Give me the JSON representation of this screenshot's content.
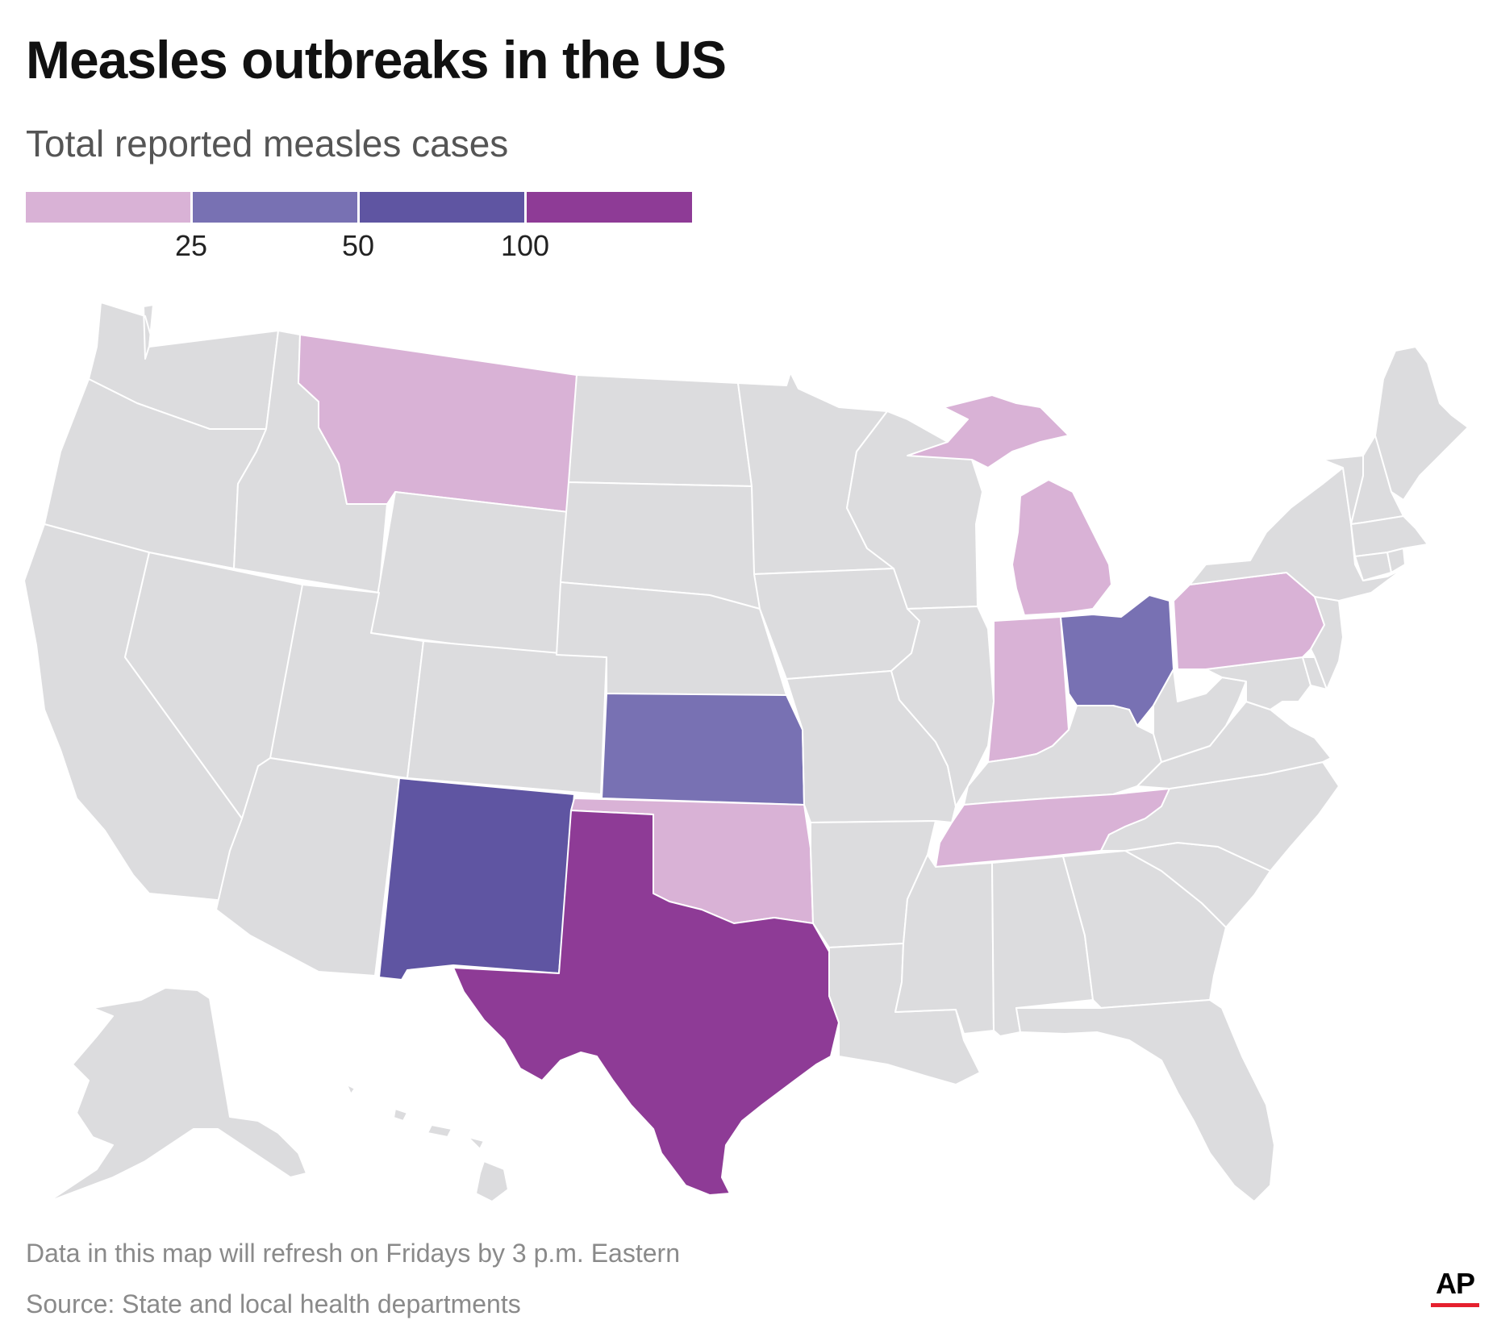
{
  "header": {
    "title": "Measles outbreaks in the US",
    "subtitle": "Total reported measles cases"
  },
  "legend": {
    "bins": [
      {
        "color": "#d9b2d6"
      },
      {
        "color": "#7871b3"
      },
      {
        "color": "#5f55a2"
      },
      {
        "color": "#8e3b96"
      }
    ],
    "thresholds": [
      "25",
      "50",
      "100"
    ]
  },
  "map": {
    "default_color": "#dcdcde",
    "border_color": "#ffffff",
    "highlighted_states": [
      {
        "state": "Montana",
        "color": "#d9b2d6"
      },
      {
        "state": "Michigan",
        "color": "#d9b2d6"
      },
      {
        "state": "Indiana",
        "color": "#d9b2d6"
      },
      {
        "state": "Pennsylvania",
        "color": "#d9b2d6"
      },
      {
        "state": "Tennessee",
        "color": "#d9b2d6"
      },
      {
        "state": "Oklahoma",
        "color": "#d9b2d6"
      },
      {
        "state": "Kansas",
        "color": "#7871b3"
      },
      {
        "state": "Ohio",
        "color": "#7871b3"
      },
      {
        "state": "New Mexico",
        "color": "#5f55a2"
      },
      {
        "state": "Texas",
        "color": "#8e3b96"
      }
    ]
  },
  "footer": {
    "note": "Data in this map will refresh on Fridays by 3 p.m. Eastern",
    "source": "Source: State and local health departments",
    "logo": "AP",
    "logo_accent": "#e5202e"
  }
}
